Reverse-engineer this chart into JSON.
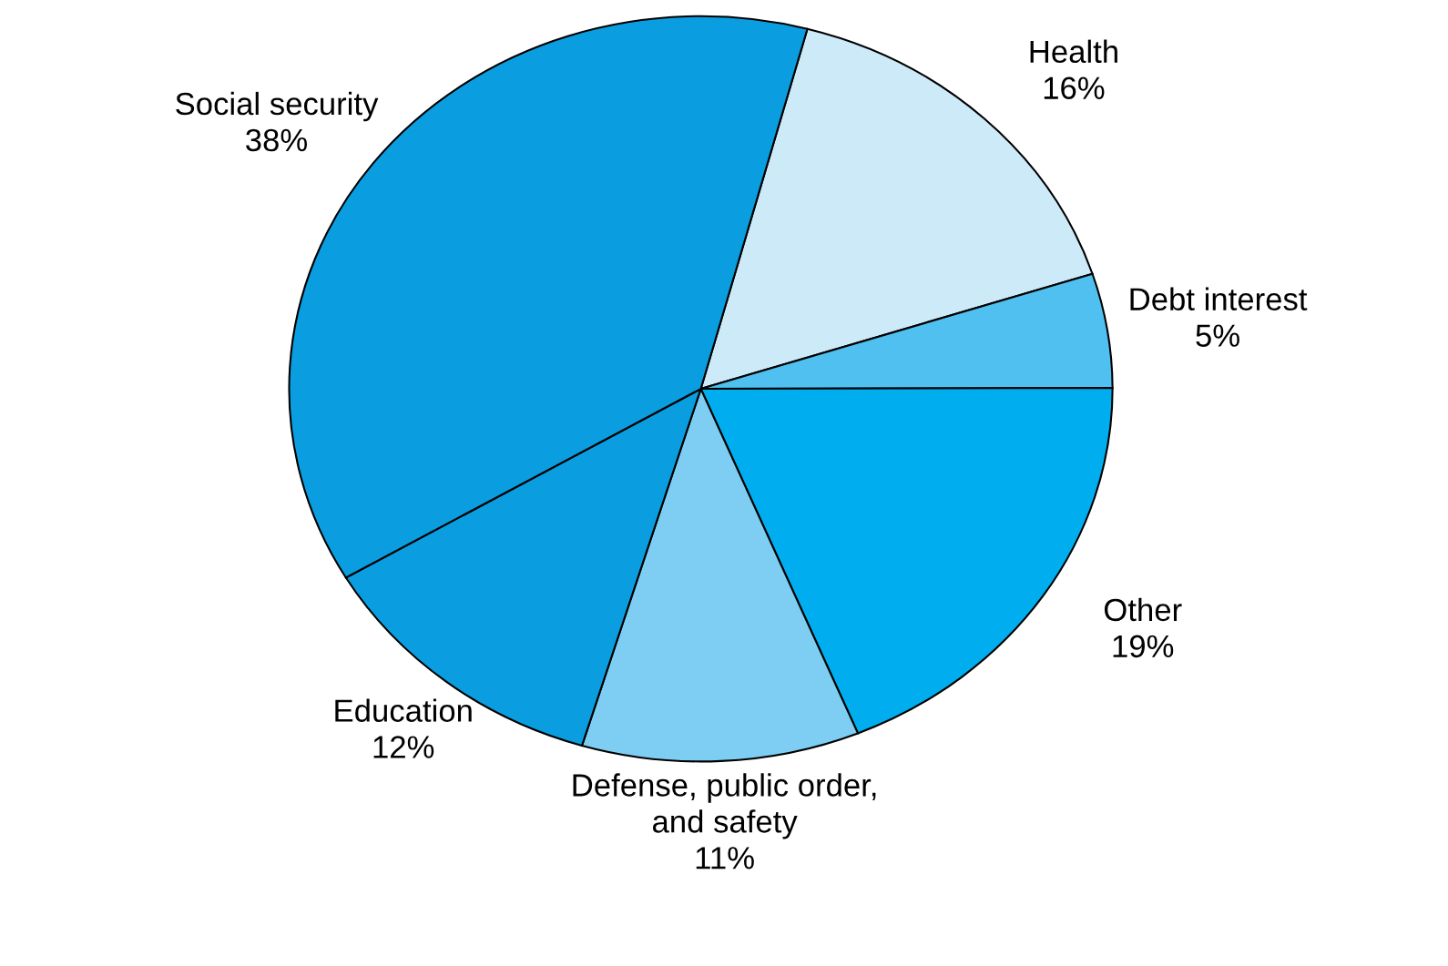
{
  "chart_data": {
    "type": "pie",
    "categories": [
      "Health",
      "Debt interest",
      "Other",
      "Defense, public order,\nand safety",
      "Education",
      "Social security"
    ],
    "values": [
      16,
      5,
      19,
      11,
      12,
      38
    ],
    "value_labels": [
      "16%",
      "5%",
      "19%",
      "11%",
      "12%",
      "38%"
    ],
    "colors": [
      "#cdeaf8",
      "#4fc0ef",
      "#00aeef",
      "#7dcef2",
      "#0a9ee0",
      "#0a9ee0"
    ]
  }
}
